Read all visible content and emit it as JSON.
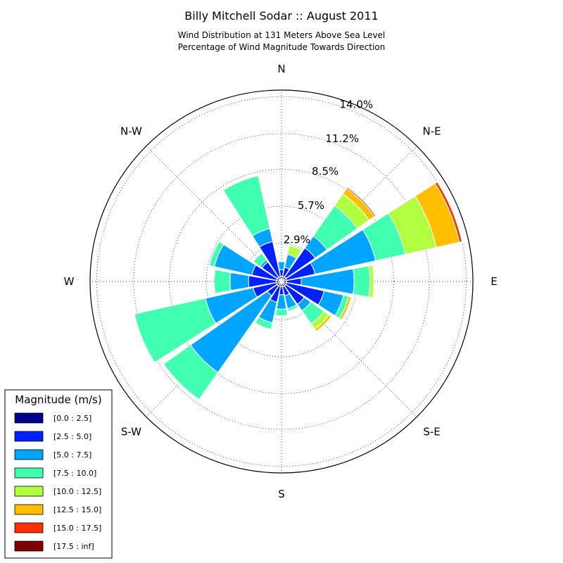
{
  "chart_data": {
    "type": "windrose",
    "title": "Billy Mitchell Sodar :: August 2011",
    "subtitle_lines": [
      "Wind Distribution at 131 Meters Above Sea Level",
      "Percentage of Wind Magnitude Towards Direction"
    ],
    "direction_labels": [
      "N",
      "N-E",
      "E",
      "S-E",
      "S",
      "S-W",
      "W",
      "N-W"
    ],
    "radial_ticks": [
      {
        "value": 2.9,
        "label": "2.9%"
      },
      {
        "value": 5.7,
        "label": "5.7%"
      },
      {
        "value": 8.5,
        "label": "8.5%"
      },
      {
        "value": 11.2,
        "label": "11.2%"
      },
      {
        "value": 14.0,
        "label": "14.0%"
      }
    ],
    "rmax": 14.5,
    "bin_width_deg": 22.5,
    "legend_title": "Magnitude (m/s)",
    "legend_position": "lower-left",
    "magnitude_bins": [
      {
        "label": "[0.0 : 2.5]",
        "color": "#00008f"
      },
      {
        "label": "[2.5 : 5.0]",
        "color": "#0020ff"
      },
      {
        "label": "[5.0 : 7.5]",
        "color": "#00a5ff"
      },
      {
        "label": "[7.5 : 10.0]",
        "color": "#40ffb0"
      },
      {
        "label": "[10.0 : 12.5]",
        "color": "#b0ff40"
      },
      {
        "label": "[12.5 : 15.0]",
        "color": "#ffbf00"
      },
      {
        "label": "[15.0 : 17.5]",
        "color": "#ff3000"
      },
      {
        "label": "[17.5 : inf]",
        "color": "#800000"
      }
    ],
    "directions_deg": [
      0,
      22.5,
      45,
      67.5,
      90,
      112.5,
      135,
      157.5,
      180,
      202.5,
      225,
      247.5,
      270,
      292.5,
      315,
      337.5
    ],
    "cumulative_percent": [
      [
        0.4,
        0.9,
        1.5,
        1.5,
        1.5,
        1.5,
        1.5,
        1.5
      ],
      [
        0.4,
        1.1,
        2.1,
        2.1,
        2.8,
        2.8,
        2.8,
        2.8
      ],
      [
        0.4,
        3.1,
        4.2,
        7.0,
        8.1,
        8.6,
        8.7,
        8.7
      ],
      [
        0.4,
        2.6,
        7.3,
        9.6,
        12.0,
        13.8,
        14.0,
        14.0
      ],
      [
        0.4,
        1.5,
        5.5,
        6.7,
        7.0,
        7.0,
        7.0,
        7.0
      ],
      [
        0.4,
        3.3,
        4.8,
        5.2,
        5.2,
        5.4,
        5.4,
        5.4
      ],
      [
        0.4,
        2.1,
        2.7,
        3.9,
        4.4,
        4.6,
        4.6,
        4.6
      ],
      [
        0.4,
        1.1,
        2.1,
        2.3,
        2.3,
        2.3,
        2.3,
        2.3
      ],
      [
        0.4,
        1.0,
        2.1,
        2.6,
        2.6,
        2.6,
        2.6,
        2.6
      ],
      [
        0.4,
        1.6,
        3.2,
        3.7,
        3.7,
        3.7,
        3.7,
        3.7
      ],
      [
        0.4,
        1.3,
        8.4,
        10.9,
        10.9,
        10.9,
        10.9,
        10.9
      ],
      [
        0.4,
        2.2,
        5.9,
        11.4,
        11.4,
        11.4,
        11.4,
        11.4
      ],
      [
        0.4,
        2.5,
        3.9,
        5.1,
        5.1,
        5.1,
        5.1,
        5.1
      ],
      [
        0.4,
        2.3,
        5.2,
        5.6,
        5.6,
        5.6,
        5.6,
        5.6
      ],
      [
        0.4,
        1.8,
        2.0,
        2.6,
        2.6,
        2.6,
        2.6,
        2.6
      ],
      [
        0.4,
        3.1,
        4.1,
        8.2,
        8.2,
        8.2,
        8.2,
        8.2
      ]
    ]
  }
}
